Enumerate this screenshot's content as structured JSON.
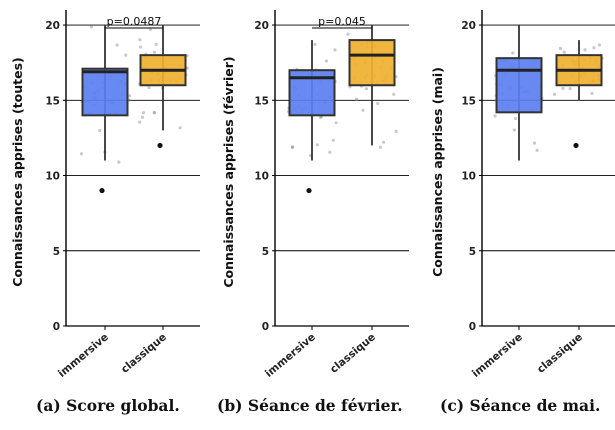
{
  "chart_data": [
    {
      "type": "box",
      "caption": "(a) Score global.",
      "ylabel": "Connaissances apprises (toutes)",
      "ylim": [
        0,
        21
      ],
      "yticks": [
        "0",
        "5",
        "10",
        "15",
        "20"
      ],
      "categories": [
        "immersive",
        "classique"
      ],
      "colors": [
        "#5b7ff0",
        "#f0b030"
      ],
      "boxes": [
        {
          "q1": 14,
          "median": 16.9,
          "q3": 17.1,
          "whisker_low": 11,
          "whisker_high": 20,
          "outliers": [
            9
          ]
        },
        {
          "q1": 16,
          "median": 17,
          "q3": 18,
          "whisker_low": 13,
          "whisker_high": 20,
          "outliers": [
            12
          ]
        }
      ],
      "annotation": "p=0.0487"
    },
    {
      "type": "box",
      "caption": "(b) Séance de février.",
      "ylabel": "Connaissances apprises (février)",
      "ylim": [
        0,
        21
      ],
      "yticks": [
        "0",
        "5",
        "10",
        "15",
        "20"
      ],
      "categories": [
        "immersive",
        "classique"
      ],
      "colors": [
        "#5b7ff0",
        "#f0b030"
      ],
      "boxes": [
        {
          "q1": 14,
          "median": 16.5,
          "q3": 17,
          "whisker_low": 11,
          "whisker_high": 19,
          "outliers": [
            9
          ]
        },
        {
          "q1": 16,
          "median": 18,
          "q3": 19,
          "whisker_low": 12,
          "whisker_high": 20,
          "outliers": []
        }
      ],
      "annotation": "p=0.045"
    },
    {
      "type": "box",
      "caption": "(c) Séance de mai.",
      "ylabel": "Connaissances apprises (mai)",
      "ylim": [
        0,
        21
      ],
      "yticks": [
        "0",
        "5",
        "10",
        "15",
        "20"
      ],
      "categories": [
        "immersive",
        "classique"
      ],
      "colors": [
        "#5b7ff0",
        "#f0b030"
      ],
      "boxes": [
        {
          "q1": 14.2,
          "median": 17,
          "q3": 17.8,
          "whisker_low": 11,
          "whisker_high": 20,
          "outliers": []
        },
        {
          "q1": 16,
          "median": 17,
          "q3": 18,
          "whisker_low": 15,
          "whisker_high": 19,
          "outliers": [
            12
          ]
        }
      ],
      "annotation": ""
    }
  ]
}
